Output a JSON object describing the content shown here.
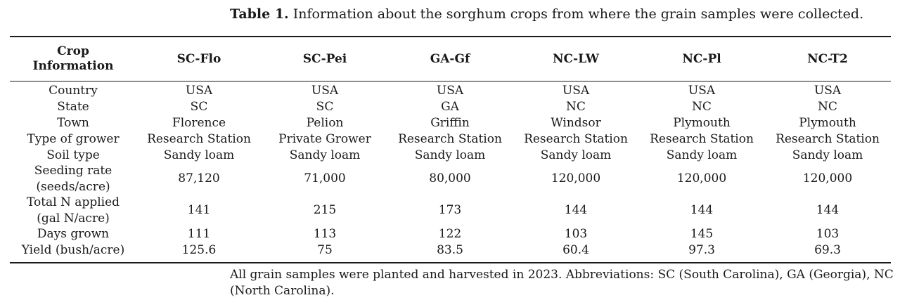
{
  "caption": {
    "label": "Table 1.",
    "text": "Information about the sorghum crops from where the grain samples were collected."
  },
  "table": {
    "header": {
      "first_line1": "Crop",
      "first_line2": "Information",
      "columns": [
        "SC-Flo",
        "SC-Pei",
        "GA-Gf",
        "NC-LW",
        "NC-Pl",
        "NC-T2"
      ]
    },
    "rows": [
      {
        "label": [
          "Country"
        ],
        "values": [
          "USA",
          "USA",
          "USA",
          "USA",
          "USA",
          "USA"
        ]
      },
      {
        "label": [
          "State"
        ],
        "values": [
          "SC",
          "SC",
          "GA",
          "NC",
          "NC",
          "NC"
        ]
      },
      {
        "label": [
          "Town"
        ],
        "values": [
          "Florence",
          "Pelion",
          "Griffin",
          "Windsor",
          "Plymouth",
          "Plymouth"
        ]
      },
      {
        "label": [
          "Type of grower"
        ],
        "values": [
          "Research Station",
          "Private Grower",
          "Research Station",
          "Research Station",
          "Research Station",
          "Research Station"
        ]
      },
      {
        "label": [
          "Soil type"
        ],
        "values": [
          "Sandy loam",
          "Sandy loam",
          "Sandy loam",
          "Sandy loam",
          "Sandy loam",
          "Sandy loam"
        ]
      },
      {
        "label": [
          "Seeding rate",
          "(seeds/acre)"
        ],
        "values": [
          "87,120",
          "71,000",
          "80,000",
          "120,000",
          "120,000",
          "120,000"
        ]
      },
      {
        "label": [
          "Total N applied",
          "(gal N/acre)"
        ],
        "values": [
          "141",
          "215",
          "173",
          "144",
          "144",
          "144"
        ]
      },
      {
        "label": [
          "Days grown"
        ],
        "values": [
          "111",
          "113",
          "122",
          "103",
          "145",
          "103"
        ]
      },
      {
        "label": [
          "Yield (bush/acre)"
        ],
        "values": [
          "125.6",
          "75",
          "83.5",
          "60.4",
          "97.3",
          "69.3"
        ]
      }
    ]
  },
  "footnote": "All grain samples were planted and harvested in 2023. Abbreviations: SC (South Carolina), GA (Georgia), NC (North Carolina)."
}
